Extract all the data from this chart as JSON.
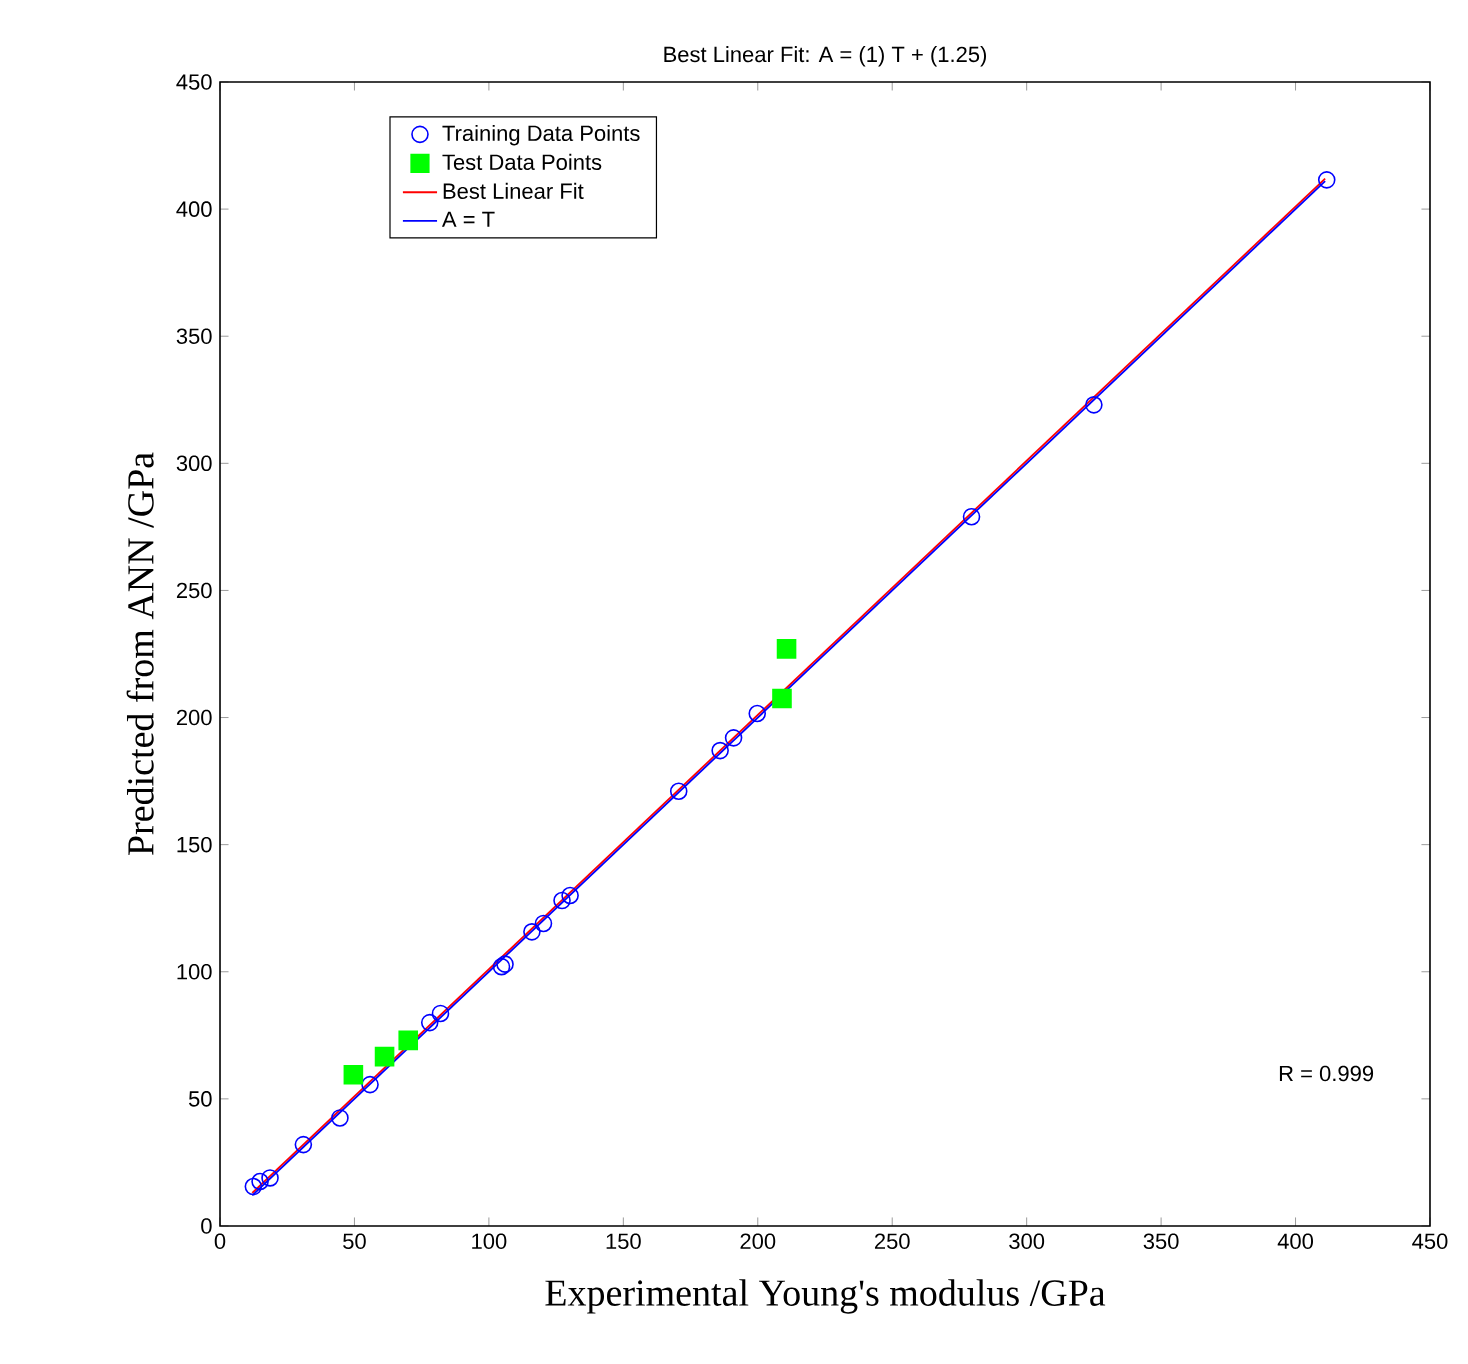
{
  "chart_data": {
    "type": "scatter",
    "title": "Best Linear Fit:  A = (1) T + (1.25)",
    "xlabel": "Experimental Young's modulus /GPa",
    "ylabel": "Predicted from ANN /GPa",
    "xlim": [
      0,
      450
    ],
    "ylim": [
      0,
      450
    ],
    "xticks": [
      0,
      50,
      100,
      150,
      200,
      250,
      300,
      350,
      400,
      450
    ],
    "yticks": [
      0,
      50,
      100,
      150,
      200,
      250,
      300,
      350,
      400,
      450
    ],
    "grid": false,
    "legend": "top left",
    "annotations": [
      "R = 0.999"
    ],
    "series": [
      {
        "name": "Training Data Points",
        "marker": "circle",
        "color": "#0000ff",
        "x": [
          12.4,
          14.9,
          18.6,
          31,
          44.6,
          55.8,
          78,
          82,
          104.7,
          106,
          116,
          120.3,
          127.2,
          130.2,
          170.6,
          186,
          191,
          199.8,
          279.5,
          325,
          411.6
        ],
        "values": [
          15.5,
          17.5,
          18.9,
          32,
          42.5,
          55.6,
          80,
          83.6,
          102,
          103,
          115.7,
          119,
          128,
          130,
          171,
          187,
          192,
          201.6,
          279,
          323,
          411.5
        ]
      },
      {
        "name": "Test Data Points",
        "marker": "square",
        "color": "#00ff00",
        "x": [
          49.6,
          61.2,
          70,
          209,
          210.7
        ],
        "values": [
          59.5,
          66.6,
          73,
          207.5,
          227
        ]
      },
      {
        "name": "Best Linear Fit",
        "type": "line",
        "marker": "none",
        "color": "#ff0000",
        "x": [
          12,
          411
        ],
        "values": [
          13,
          412
        ]
      },
      {
        "name": "A = T",
        "type": "line",
        "marker": "none",
        "color": "#0000ff",
        "x": [
          12,
          411
        ],
        "values": [
          12,
          411
        ]
      }
    ]
  }
}
